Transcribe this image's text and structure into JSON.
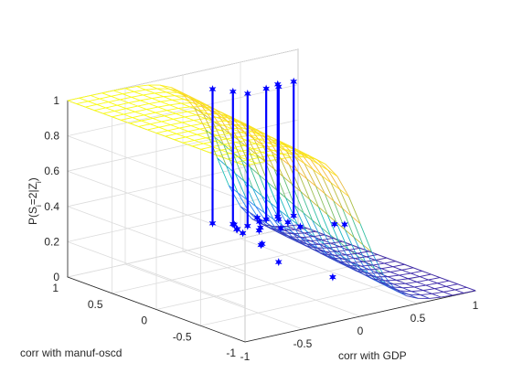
{
  "chart_data": {
    "type": "surface",
    "xlabel": "corr with GDP",
    "ylabel": "corr with manuf-oscd",
    "zlabel_parts": [
      "P(S",
      "i",
      "=2|Z",
      "i",
      ")"
    ],
    "xlim": [
      -1,
      1
    ],
    "ylim": [
      -1,
      1
    ],
    "zlim": [
      0,
      1
    ],
    "x_ticks": [
      "-1",
      "-0.5",
      "0",
      "0.5",
      "1"
    ],
    "y_ticks": [
      "-1",
      "-0.5",
      "0",
      "0.5",
      "1"
    ],
    "z_ticks": [
      "0",
      "0.2",
      "0.4",
      "0.6",
      "0.8",
      "1"
    ],
    "grid": true,
    "surface_grid_n": 21,
    "surface_function": "logistic",
    "surface_params": {
      "b0": 1.1,
      "bx": -7.2,
      "by": 1.0
    },
    "colormap": [
      "#3e26a8",
      "#2e87f7",
      "#19bfb7",
      "#a5be43",
      "#faba3c",
      "#f9fb15"
    ],
    "points_color": "#0000ff",
    "points": [
      {
        "x": 0.1,
        "y": 0.55,
        "z": 0.22
      },
      {
        "x": 0.02,
        "y": 0.42,
        "z": 0.23
      },
      {
        "x": 0.05,
        "y": 0.45,
        "z": 0.22
      },
      {
        "x": 0.02,
        "y": 0.35,
        "z": 0.22
      },
      {
        "x": 0.15,
        "y": 0.3,
        "z": 0.15
      },
      {
        "x": 0.1,
        "y": 0.25,
        "z": 0.16
      },
      {
        "x": 0.2,
        "y": 0.4,
        "z": 0.2
      },
      {
        "x": 0.25,
        "y": 0.45,
        "z": 0.2
      },
      {
        "x": 0.28,
        "y": 0.5,
        "z": 0.22
      },
      {
        "x": 0.3,
        "y": 0.55,
        "z": 0.23
      },
      {
        "x": 0.35,
        "y": 0.35,
        "z": 0.2
      },
      {
        "x": 0.45,
        "y": 0.4,
        "z": 0.21
      },
      {
        "x": 0.48,
        "y": 0.3,
        "z": 0.2
      },
      {
        "x": 0.7,
        "y": 0.2,
        "z": 0.2
      },
      {
        "x": 0.75,
        "y": 0.15,
        "z": 0.2
      },
      {
        "x": 0.1,
        "y": 0.05,
        "z": 0.1
      },
      {
        "x": 0.3,
        "y": -0.3,
        "z": 0.05
      },
      {
        "x": -0.05,
        "y": 0.6,
        "z": 1.0
      },
      {
        "x": 0.05,
        "y": 0.5,
        "z": 0.99
      },
      {
        "x": 0.1,
        "y": 0.4,
        "z": 0.99
      },
      {
        "x": 0.3,
        "y": 0.45,
        "z": 0.98
      },
      {
        "x": 0.37,
        "y": 0.4,
        "z": 0.99
      },
      {
        "x": 0.4,
        "y": 0.45,
        "z": 0.99
      },
      {
        "x": 0.5,
        "y": 0.4,
        "z": 1.0
      }
    ]
  }
}
